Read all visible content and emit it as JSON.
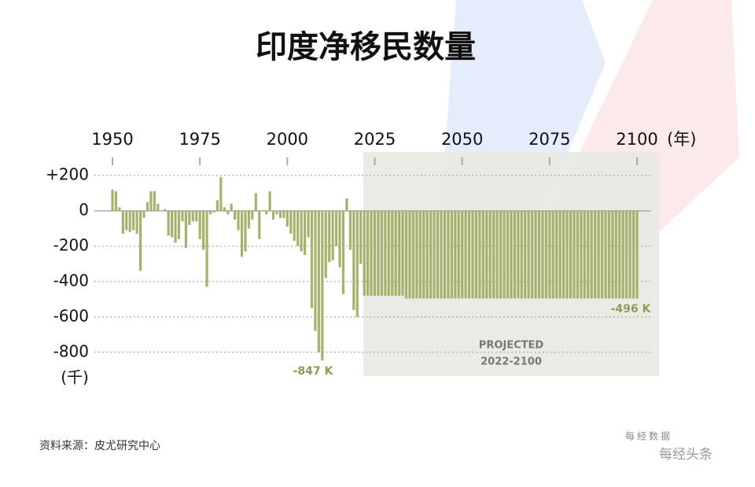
{
  "chart_data": {
    "type": "bar",
    "title": "印度净移民数量",
    "x_unit": "(年)",
    "y_unit": "(千)",
    "annotations": [
      "-847 K",
      "-496 K"
    ],
    "projected_label": "PROJECTED",
    "projected_range": "2022-2100",
    "source": "资料来源：皮尤研究中心",
    "watermark": [
      "每经数据",
      "每经头条"
    ],
    "x": [
      1950,
      1951,
      1952,
      1953,
      1954,
      1955,
      1956,
      1957,
      1958,
      1959,
      1960,
      1961,
      1962,
      1963,
      1964,
      1965,
      1966,
      1967,
      1968,
      1969,
      1970,
      1971,
      1972,
      1973,
      1974,
      1975,
      1976,
      1977,
      1978,
      1979,
      1980,
      1981,
      1982,
      1983,
      1984,
      1985,
      1986,
      1987,
      1988,
      1989,
      1990,
      1991,
      1992,
      1993,
      1994,
      1995,
      1996,
      1997,
      1998,
      1999,
      2000,
      2001,
      2002,
      2003,
      2004,
      2005,
      2006,
      2007,
      2008,
      2009,
      2010,
      2011,
      2012,
      2013,
      2014,
      2015,
      2016,
      2017,
      2018,
      2019,
      2020,
      2021,
      2022,
      2023,
      2024,
      2025,
      2026,
      2027,
      2028,
      2029,
      2030,
      2031,
      2032,
      2033,
      2034,
      2035,
      2036,
      2037,
      2038,
      2039,
      2040,
      2041,
      2042,
      2043,
      2044,
      2045,
      2046,
      2047,
      2048,
      2049,
      2050,
      2051,
      2052,
      2053,
      2054,
      2055,
      2056,
      2057,
      2058,
      2059,
      2060,
      2061,
      2062,
      2063,
      2064,
      2065,
      2066,
      2067,
      2068,
      2069,
      2070,
      2071,
      2072,
      2073,
      2074,
      2075,
      2076,
      2077,
      2078,
      2079,
      2080,
      2081,
      2082,
      2083,
      2084,
      2085,
      2086,
      2087,
      2088,
      2089,
      2090,
      2091,
      2092,
      2093,
      2094,
      2095,
      2096,
      2097,
      2098,
      2099,
      2100
    ],
    "values": [
      120,
      110,
      20,
      -130,
      -110,
      -120,
      -110,
      -130,
      -340,
      -40,
      50,
      110,
      110,
      40,
      0,
      10,
      -140,
      -150,
      -180,
      -160,
      -60,
      -210,
      -80,
      -60,
      -60,
      -160,
      -220,
      -430,
      -20,
      -10,
      60,
      190,
      20,
      -20,
      40,
      -50,
      -110,
      -260,
      -230,
      -100,
      -50,
      100,
      -160,
      0,
      -20,
      110,
      -50,
      -20,
      -40,
      -40,
      -90,
      -130,
      -170,
      -200,
      -230,
      -250,
      -150,
      -550,
      -680,
      -800,
      -847,
      -380,
      -290,
      -280,
      -200,
      -320,
      -470,
      70,
      -220,
      -560,
      -600,
      -300,
      -480,
      -480,
      -480,
      -480,
      -480,
      -480,
      -480,
      -480,
      -480,
      -480,
      -480,
      -480,
      -496,
      -496,
      -496,
      -496,
      -496,
      -496,
      -496,
      -496,
      -496,
      -496,
      -496,
      -496,
      -496,
      -496,
      -496,
      -496,
      -496,
      -496,
      -496,
      -496,
      -496,
      -496,
      -496,
      -496,
      -496,
      -496,
      -496,
      -496,
      -496,
      -496,
      -496,
      -496,
      -496,
      -496,
      -496,
      -496,
      -496,
      -496,
      -496,
      -496,
      -496,
      -496,
      -496,
      -496,
      -496,
      -496,
      -496,
      -496,
      -496,
      -496,
      -496,
      -496,
      -496,
      -496,
      -496,
      -496,
      -496,
      -496,
      -496,
      -496,
      -496,
      -496,
      -496,
      -496,
      -496,
      -496,
      -496
    ],
    "color": "#a3b36c",
    "xlim": [
      1950,
      2100
    ],
    "xticks": [
      1950,
      1975,
      2000,
      2025,
      2050,
      2075,
      2100
    ],
    "ylim": [
      -930,
      300
    ],
    "yticks": [
      {
        "value": 200,
        "label": "+200"
      },
      0,
      -200,
      -400,
      -600,
      -800
    ],
    "grid": true
  }
}
